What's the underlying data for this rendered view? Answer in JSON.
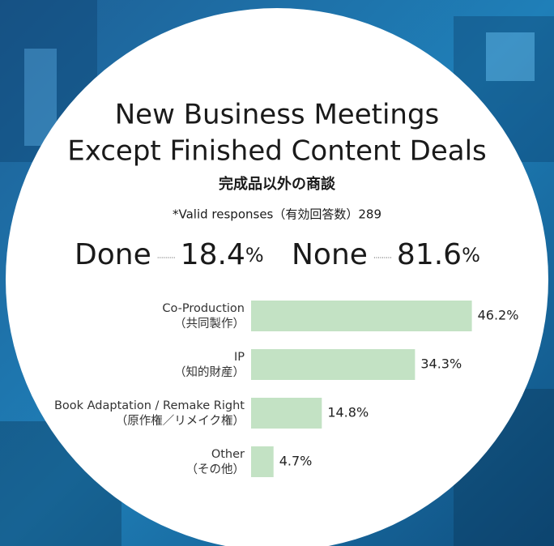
{
  "title": [
    "New Business Meetings",
    "Except Finished Content Deals"
  ],
  "subtitle": "完成品以外の商談",
  "note": "*Valid responses（有効回答数）289",
  "summary": [
    {
      "label": "Done",
      "value": 18.4,
      "unit": "%"
    },
    {
      "label": "None",
      "value": 81.6,
      "unit": "%"
    }
  ],
  "chart_data": {
    "type": "bar",
    "orientation": "horizontal",
    "categories": [
      [
        "Co-Production",
        "（共同製作）"
      ],
      [
        "IP",
        "（知的財産）"
      ],
      [
        "Book Adaptation / Remake Right",
        "（原作権／リメイク権）"
      ],
      [
        "Other",
        "（その他）"
      ]
    ],
    "values": [
      46.2,
      34.3,
      14.8,
      4.7
    ],
    "value_labels": [
      "46.2%",
      "34.3%",
      "14.8%",
      "4.7%"
    ],
    "color": "#c3e2c4"
  }
}
